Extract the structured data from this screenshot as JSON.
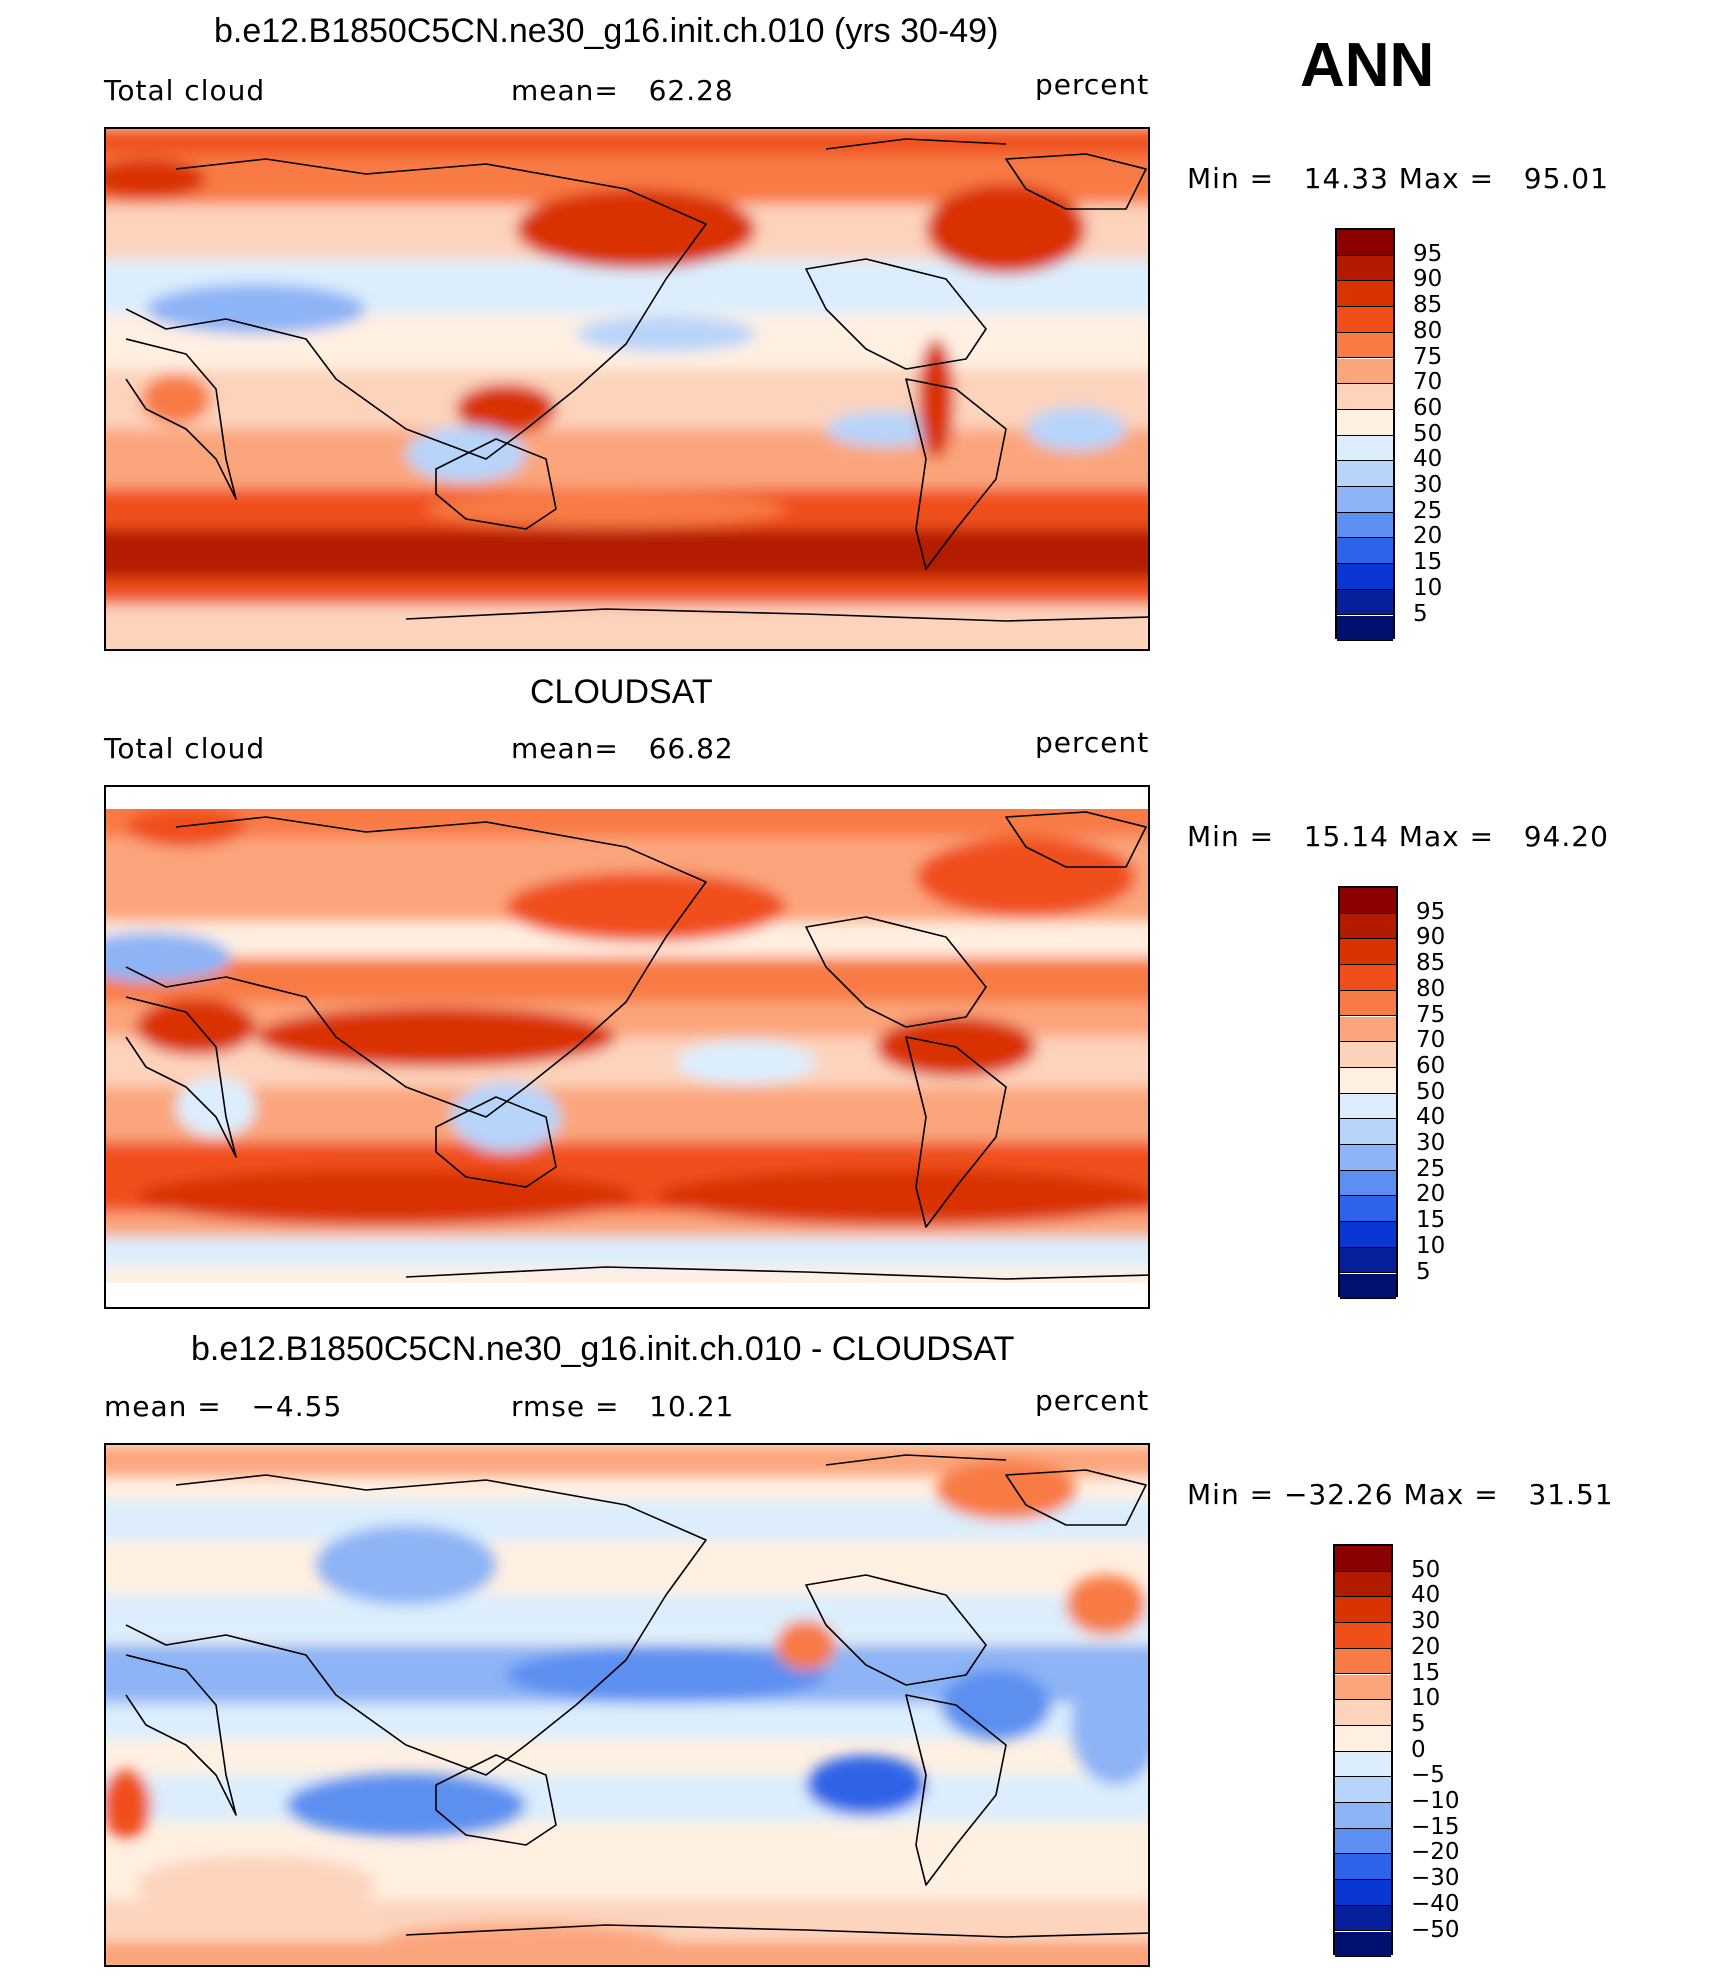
{
  "season": "ANN",
  "panels": [
    {
      "id": "model",
      "title": "b.e12.B1850C5CN.ne30_g16.init.ch.010 (yrs 30-49)",
      "left_label": "Total cloud",
      "center_label": "mean=   62.28",
      "right_label": "percent",
      "minmax": "Min =   14.33 Max =   95.01",
      "legend": [
        "95",
        "90",
        "85",
        "80",
        "75",
        "70",
        "60",
        "50",
        "40",
        "30",
        "25",
        "20",
        "15",
        "10",
        "5"
      ],
      "colors": [
        "#8b0000",
        "#b31b00",
        "#d93300",
        "#f04f1a",
        "#f87a45",
        "#fba57c",
        "#fdd3bc",
        "#fff0e2",
        "#dceefd",
        "#b7d4fa",
        "#8db4f6",
        "#5c8ff0",
        "#2d63e8",
        "#0a36d1",
        "#06209c",
        "#00106e"
      ],
      "map_style": "model"
    },
    {
      "id": "obs",
      "title": "CLOUDSAT",
      "left_label": "Total cloud",
      "center_label": "mean=   66.82",
      "right_label": "percent",
      "minmax": "Min =   15.14 Max =   94.20",
      "legend": [
        "95",
        "90",
        "85",
        "80",
        "75",
        "70",
        "60",
        "50",
        "40",
        "30",
        "25",
        "20",
        "15",
        "10",
        "5"
      ],
      "colors": [
        "#8b0000",
        "#b31b00",
        "#d93300",
        "#f04f1a",
        "#f87a45",
        "#fba57c",
        "#fdd3bc",
        "#fff0e2",
        "#dceefd",
        "#b7d4fa",
        "#8db4f6",
        "#5c8ff0",
        "#2d63e8",
        "#0a36d1",
        "#06209c",
        "#00106e"
      ],
      "map_style": "obs"
    },
    {
      "id": "diff",
      "title": "b.e12.B1850C5CN.ne30_g16.init.ch.010 - CLOUDSAT",
      "left_label": "mean =   −4.55",
      "center_label": "rmse =   10.21",
      "right_label": "percent",
      "minmax": "Min = −32.26 Max =   31.51",
      "legend": [
        "50",
        "40",
        "30",
        "20",
        "15",
        "10",
        "5",
        "0",
        "−5",
        "−10",
        "−15",
        "−20",
        "−30",
        "−40",
        "−50"
      ],
      "colors": [
        "#8b0000",
        "#b31b00",
        "#d93300",
        "#f04f1a",
        "#f87a45",
        "#fba57c",
        "#fdd3bc",
        "#fff0e2",
        "#dceefd",
        "#b7d4fa",
        "#8db4f6",
        "#5c8ff0",
        "#2d63e8",
        "#0a36d1",
        "#06209c",
        "#00106e"
      ],
      "map_style": "diff"
    }
  ]
}
